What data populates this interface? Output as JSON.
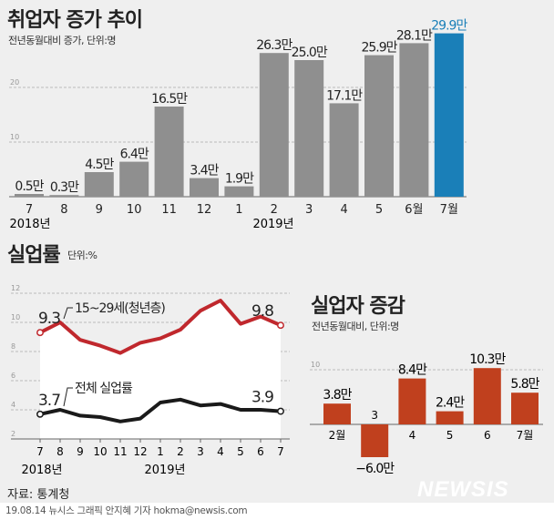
{
  "chart_data": [
    {
      "type": "bar",
      "title": "취업자 증가 추이",
      "subtitle": "전년동월대비 증가, 단위:명",
      "categories": [
        "7",
        "8",
        "9",
        "10",
        "11",
        "12",
        "1",
        "2",
        "3",
        "4",
        "5",
        "6월",
        "7월"
      ],
      "year_labels": [
        "2018년",
        "2019년"
      ],
      "values": [
        0.5,
        0.3,
        4.5,
        6.4,
        16.5,
        3.4,
        1.9,
        26.3,
        25.0,
        17.1,
        25.9,
        28.1,
        29.9
      ],
      "data_labels": [
        "0.5만",
        "0.3만",
        "4.5만",
        "6.4만",
        "16.5만",
        "3.4만",
        "1.9만",
        "26.3만",
        "25.0만",
        "17.1만",
        "25.9만",
        "28.1만",
        "29.9만"
      ],
      "yticks": [
        "10",
        "20"
      ],
      "ylim": [
        0,
        30
      ],
      "grid": true,
      "colors": {
        "bar": "#8f8f8f",
        "highlight": "#1a7fb8"
      }
    },
    {
      "type": "line",
      "title": "실업률",
      "subtitle": "단위:%",
      "categories": [
        "7",
        "8",
        "9",
        "10",
        "11",
        "12",
        "1",
        "2",
        "3",
        "4",
        "5",
        "6",
        "7"
      ],
      "year_labels": [
        "2018년",
        "2019년"
      ],
      "yticks": [
        "2",
        "4",
        "6",
        "8",
        "10",
        "12"
      ],
      "ylim": [
        2,
        12
      ],
      "grid": true,
      "series": [
        {
          "name": "15~29세(청년층)",
          "values": [
            9.3,
            10.0,
            8.8,
            8.4,
            7.9,
            8.6,
            8.9,
            9.5,
            10.8,
            11.5,
            9.9,
            10.4,
            9.8
          ],
          "start_label": "9.3",
          "end_label": "9.8",
          "color": "#c0282d"
        },
        {
          "name": "전체 실업률",
          "values": [
            3.7,
            4.0,
            3.6,
            3.5,
            3.2,
            3.4,
            4.5,
            4.7,
            4.3,
            4.4,
            4.0,
            4.0,
            3.9
          ],
          "start_label": "3.7",
          "end_label": "3.9",
          "color": "#1a1a1a"
        }
      ]
    },
    {
      "type": "bar",
      "title": "실업자 증감",
      "subtitle": "전년동월대비, 단위:명",
      "categories": [
        "2월",
        "3",
        "4",
        "5",
        "6",
        "7월"
      ],
      "values": [
        3.8,
        -6.0,
        8.4,
        2.4,
        10.3,
        5.8
      ],
      "data_labels": [
        "3.8만",
        "−6.0만",
        "8.4만",
        "2.4만",
        "10.3만",
        "5.8만"
      ],
      "yticks": [
        "10"
      ],
      "grid": true,
      "colors": {
        "bar": "#c0401e"
      }
    }
  ],
  "source": "자료: 통계청",
  "footer": "19.08.14 뉴시스 그래픽 안지혜 기자 hokma@newsis.com",
  "logo": "NEWSIS"
}
